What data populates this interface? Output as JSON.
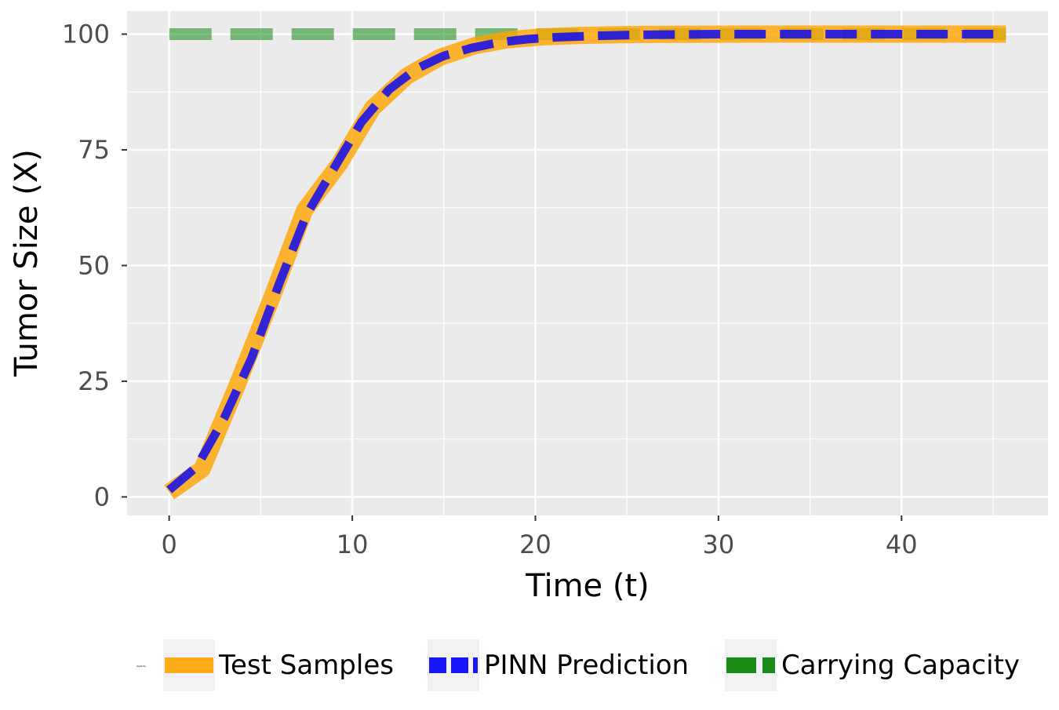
{
  "chart_data": {
    "type": "line",
    "title": "",
    "xlabel": "Time (t)",
    "ylabel": "Tumor Size (X)",
    "xlim": [
      -2.3,
      48.0
    ],
    "ylim": [
      -4.0,
      105.0
    ],
    "x_ticks": [
      0,
      10,
      20,
      30,
      40
    ],
    "x_tick_labels": [
      "0",
      "10",
      "20",
      "30",
      "40"
    ],
    "y_ticks": [
      0,
      25,
      50,
      75,
      100
    ],
    "y_tick_labels": [
      "0",
      "25",
      "50",
      "75",
      "100"
    ],
    "grid": true,
    "legend_position": "bottom",
    "legend_title": "legends",
    "colors": {
      "panel_background": "#ebebeb",
      "grid_line": "#ffffff",
      "test_samples": "#ffa500",
      "pinn_prediction": "#0000ff",
      "carrying_capacity": "#008000"
    },
    "series": [
      {
        "name": "Test Samples",
        "style": "solid",
        "x": [
          0,
          1.8,
          3.7,
          5.6,
          7.4,
          9.3,
          11.1,
          13.0,
          14.8,
          16.7,
          18.5,
          20.4,
          22.3,
          24.1,
          26.0,
          27.8,
          29.7,
          31.5,
          33.4,
          35.2,
          37.1,
          39.0,
          40.8,
          42.7,
          44.5,
          45.7
        ],
        "y": [
          1.0,
          6.0,
          24.0,
          43.0,
          62.0,
          72.0,
          84.0,
          91.0,
          95.0,
          97.5,
          98.8,
          99.4,
          99.7,
          99.85,
          99.93,
          99.97,
          99.99,
          100,
          100,
          100,
          100,
          100,
          100,
          100,
          100,
          100
        ]
      },
      {
        "name": "PINN Prediction",
        "style": "dashed",
        "x": [
          0,
          1.5,
          3.0,
          4.5,
          6.0,
          7.5,
          9.0,
          10.5,
          12.0,
          13.5,
          15.0,
          16.5,
          18.0,
          19.5,
          21.0,
          23.0,
          25.0,
          27.0,
          30.0,
          33.0,
          36.0,
          40.0,
          43.0,
          45.7
        ],
        "y": [
          1.5,
          6.5,
          17.0,
          30.0,
          46.0,
          61.0,
          71.0,
          81.0,
          88.0,
          92.5,
          95.3,
          97.0,
          98.2,
          98.9,
          99.3,
          99.6,
          99.8,
          99.9,
          100,
          100,
          100,
          100,
          100,
          100
        ]
      },
      {
        "name": "Carrying Capacity",
        "style": "dashed",
        "x": [
          0,
          45.7
        ],
        "y": [
          100,
          100
        ]
      }
    ]
  }
}
